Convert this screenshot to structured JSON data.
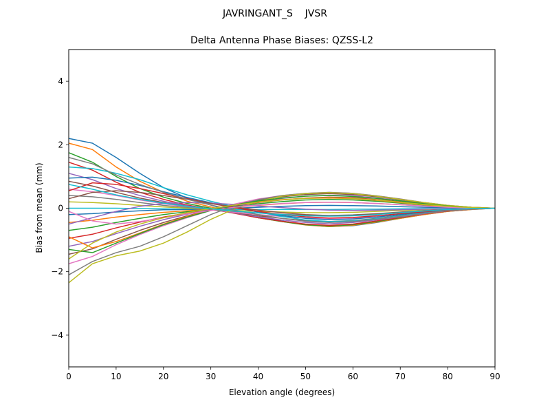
{
  "figure": {
    "suptitle": "JAVRINGANT_S    JVSR"
  },
  "chart_data": {
    "type": "line",
    "title": "Delta Antenna Phase Biases: QZSS-L2",
    "xlabel": "Elevation angle (degrees)",
    "ylabel": "Bias from mean (mm)",
    "xlim": [
      0,
      90
    ],
    "ylim": [
      -5,
      5
    ],
    "x_ticks": [
      0,
      10,
      20,
      30,
      40,
      50,
      60,
      70,
      80,
      90
    ],
    "y_ticks": [
      -4,
      -2,
      0,
      2,
      4
    ],
    "y_tick_labels": [
      "−4",
      "−2",
      "0",
      "2",
      "4"
    ],
    "grid": false,
    "legend": "none",
    "x": [
      0,
      5,
      10,
      15,
      20,
      25,
      30,
      35,
      40,
      45,
      50,
      55,
      60,
      65,
      70,
      75,
      80,
      85,
      90
    ],
    "palette": [
      "#1f77b4",
      "#ff7f0e",
      "#2ca02c",
      "#d62728",
      "#9467bd",
      "#8c564b",
      "#e377c2",
      "#7f7f7f",
      "#bcbd22",
      "#17becf"
    ],
    "series": [
      {
        "values": [
          2.2,
          2.05,
          1.6,
          1.1,
          0.65,
          0.32,
          0.1,
          -0.12,
          -0.28,
          -0.4,
          -0.52,
          -0.58,
          -0.55,
          -0.45,
          -0.32,
          -0.2,
          -0.1,
          -0.04,
          0
        ]
      },
      {
        "values": [
          2.05,
          1.85,
          1.3,
          0.85,
          0.5,
          0.22,
          0.04,
          -0.14,
          -0.3,
          -0.42,
          -0.53,
          -0.58,
          -0.54,
          -0.44,
          -0.32,
          -0.2,
          -0.1,
          -0.04,
          0
        ]
      },
      {
        "values": [
          1.75,
          1.45,
          1.0,
          0.62,
          0.35,
          0.15,
          0.0,
          -0.15,
          -0.3,
          -0.42,
          -0.52,
          -0.56,
          -0.52,
          -0.42,
          -0.3,
          -0.18,
          -0.09,
          -0.03,
          0
        ]
      },
      {
        "values": [
          1.45,
          1.2,
          0.82,
          0.5,
          0.28,
          0.1,
          -0.03,
          -0.16,
          -0.3,
          -0.41,
          -0.5,
          -0.54,
          -0.5,
          -0.4,
          -0.29,
          -0.18,
          -0.09,
          -0.03,
          0
        ]
      },
      {
        "values": [
          1.1,
          0.9,
          0.62,
          0.4,
          0.22,
          0.08,
          -0.04,
          -0.15,
          -0.27,
          -0.37,
          -0.45,
          -0.49,
          -0.45,
          -0.37,
          -0.27,
          -0.17,
          -0.08,
          -0.03,
          0
        ]
      },
      {
        "values": [
          0.85,
          0.7,
          0.5,
          0.32,
          0.18,
          0.06,
          -0.05,
          -0.14,
          -0.24,
          -0.32,
          -0.39,
          -0.42,
          -0.39,
          -0.32,
          -0.23,
          -0.14,
          -0.07,
          -0.02,
          0
        ]
      },
      {
        "values": [
          0.6,
          0.52,
          0.4,
          0.26,
          0.14,
          0.04,
          -0.05,
          -0.13,
          -0.2,
          -0.26,
          -0.31,
          -0.33,
          -0.31,
          -0.25,
          -0.18,
          -0.11,
          -0.05,
          -0.02,
          0
        ]
      },
      {
        "values": [
          0.4,
          0.36,
          0.28,
          0.18,
          0.09,
          0.02,
          -0.05,
          -0.1,
          -0.15,
          -0.19,
          -0.22,
          -0.23,
          -0.21,
          -0.17,
          -0.12,
          -0.07,
          -0.03,
          -0.01,
          0
        ]
      },
      {
        "values": [
          0.2,
          0.18,
          0.14,
          0.09,
          0.04,
          0.0,
          -0.04,
          -0.07,
          -0.1,
          -0.12,
          -0.14,
          -0.14,
          -0.13,
          -0.1,
          -0.07,
          -0.04,
          -0.02,
          -0.01,
          0
        ]
      },
      {
        "values": [
          0.0,
          0.0,
          0.0,
          -0.01,
          -0.02,
          -0.03,
          -0.04,
          -0.04,
          -0.04,
          -0.04,
          -0.04,
          -0.04,
          -0.03,
          -0.03,
          -0.02,
          -0.01,
          -0.01,
          0,
          0
        ]
      },
      {
        "values": [
          -0.2,
          -0.17,
          -0.12,
          -0.08,
          -0.05,
          -0.04,
          -0.03,
          0.0,
          0.03,
          0.06,
          0.08,
          0.09,
          0.08,
          0.07,
          0.05,
          0.03,
          0.02,
          0.01,
          0
        ]
      },
      {
        "values": [
          -0.45,
          -0.38,
          -0.28,
          -0.2,
          -0.13,
          -0.08,
          -0.03,
          0.03,
          0.09,
          0.14,
          0.18,
          0.19,
          0.18,
          0.15,
          0.11,
          0.07,
          0.04,
          0.01,
          0
        ]
      },
      {
        "values": [
          -0.7,
          -0.6,
          -0.45,
          -0.32,
          -0.2,
          -0.11,
          -0.03,
          0.06,
          0.14,
          0.21,
          0.26,
          0.28,
          0.26,
          0.22,
          0.16,
          0.1,
          0.05,
          0.02,
          0
        ]
      },
      {
        "values": [
          -0.95,
          -0.82,
          -0.62,
          -0.44,
          -0.28,
          -0.15,
          -0.03,
          0.08,
          0.18,
          0.26,
          0.32,
          0.35,
          0.33,
          0.27,
          0.2,
          0.13,
          0.06,
          0.02,
          0
        ]
      },
      {
        "values": [
          -1.2,
          -1.05,
          -0.8,
          -0.57,
          -0.36,
          -0.19,
          -0.04,
          0.1,
          0.22,
          0.31,
          0.38,
          0.41,
          0.39,
          0.32,
          0.24,
          0.15,
          0.07,
          0.02,
          0
        ]
      },
      {
        "values": [
          -1.45,
          -1.28,
          -0.98,
          -0.7,
          -0.45,
          -0.24,
          -0.05,
          0.12,
          0.26,
          0.36,
          0.43,
          0.46,
          0.43,
          0.36,
          0.27,
          0.17,
          0.08,
          0.03,
          0
        ]
      },
      {
        "values": [
          -1.75,
          -1.52,
          -1.15,
          -0.83,
          -0.55,
          -0.3,
          -0.07,
          0.13,
          0.29,
          0.4,
          0.47,
          0.5,
          0.47,
          0.39,
          0.29,
          0.18,
          0.09,
          0.03,
          0
        ]
      },
      {
        "values": [
          -2.1,
          -1.68,
          -1.4,
          -1.2,
          -0.9,
          -0.55,
          -0.2,
          0.08,
          0.27,
          0.4,
          0.47,
          0.5,
          0.47,
          0.39,
          0.29,
          0.18,
          0.09,
          0.03,
          0
        ]
      },
      {
        "values": [
          -2.35,
          -1.75,
          -1.5,
          -1.35,
          -1.1,
          -0.75,
          -0.35,
          -0.02,
          0.22,
          0.38,
          0.46,
          0.49,
          0.46,
          0.38,
          0.28,
          0.18,
          0.09,
          0.03,
          0
        ]
      },
      {
        "values": [
          1.3,
          1.25,
          1.1,
          0.9,
          0.65,
          0.42,
          0.22,
          0.04,
          -0.12,
          -0.26,
          -0.37,
          -0.42,
          -0.4,
          -0.33,
          -0.24,
          -0.15,
          -0.07,
          -0.02,
          0
        ]
      },
      {
        "values": [
          0.95,
          0.98,
          0.88,
          0.72,
          0.52,
          0.34,
          0.17,
          0.02,
          -0.12,
          -0.23,
          -0.32,
          -0.36,
          -0.34,
          -0.28,
          -0.2,
          -0.12,
          -0.06,
          -0.02,
          0
        ]
      },
      {
        "values": [
          -0.9,
          -1.25,
          -1.05,
          -0.78,
          -0.5,
          -0.26,
          -0.06,
          0.1,
          0.2,
          0.27,
          0.31,
          0.32,
          0.3,
          0.25,
          0.18,
          0.11,
          0.05,
          0.02,
          0
        ]
      },
      {
        "values": [
          -1.3,
          -1.4,
          -1.1,
          -0.8,
          -0.52,
          -0.28,
          -0.07,
          0.1,
          0.23,
          0.32,
          0.38,
          0.4,
          0.37,
          0.31,
          0.23,
          0.14,
          0.07,
          0.02,
          0
        ]
      },
      {
        "values": [
          0.55,
          0.8,
          0.75,
          0.62,
          0.46,
          0.3,
          0.15,
          0.02,
          -0.1,
          -0.2,
          -0.27,
          -0.31,
          -0.29,
          -0.24,
          -0.17,
          -0.11,
          -0.05,
          -0.02,
          0
        ]
      },
      {
        "values": [
          -0.5,
          -0.3,
          -0.1,
          0.06,
          0.15,
          0.18,
          0.16,
          0.12,
          0.07,
          0.02,
          -0.03,
          -0.06,
          -0.07,
          -0.06,
          -0.05,
          -0.03,
          -0.02,
          -0.01,
          0
        ]
      },
      {
        "values": [
          0.3,
          0.5,
          0.55,
          0.5,
          0.4,
          0.28,
          0.15,
          0.04,
          -0.06,
          -0.14,
          -0.2,
          -0.23,
          -0.22,
          -0.18,
          -0.13,
          -0.08,
          -0.04,
          -0.01,
          0
        ]
      },
      {
        "values": [
          -0.1,
          -0.4,
          -0.5,
          -0.42,
          -0.3,
          -0.18,
          -0.07,
          0.03,
          0.1,
          0.15,
          0.18,
          0.19,
          0.18,
          0.15,
          0.11,
          0.07,
          0.03,
          0.01,
          0
        ]
      },
      {
        "values": [
          1.6,
          1.4,
          1.05,
          0.75,
          0.5,
          0.28,
          0.1,
          -0.06,
          -0.2,
          -0.32,
          -0.41,
          -0.45,
          -0.42,
          -0.35,
          -0.26,
          -0.16,
          -0.08,
          -0.03,
          0
        ]
      },
      {
        "values": [
          -1.6,
          -1.1,
          -0.75,
          -0.5,
          -0.3,
          -0.14,
          -0.01,
          0.1,
          0.19,
          0.26,
          0.31,
          0.33,
          0.31,
          0.26,
          0.19,
          0.12,
          0.06,
          0.02,
          0
        ]
      },
      {
        "values": [
          0.75,
          0.6,
          0.42,
          0.28,
          0.16,
          0.06,
          -0.02,
          -0.09,
          -0.15,
          -0.2,
          -0.24,
          -0.25,
          -0.24,
          -0.2,
          -0.14,
          -0.09,
          -0.04,
          -0.01,
          0
        ]
      }
    ]
  }
}
